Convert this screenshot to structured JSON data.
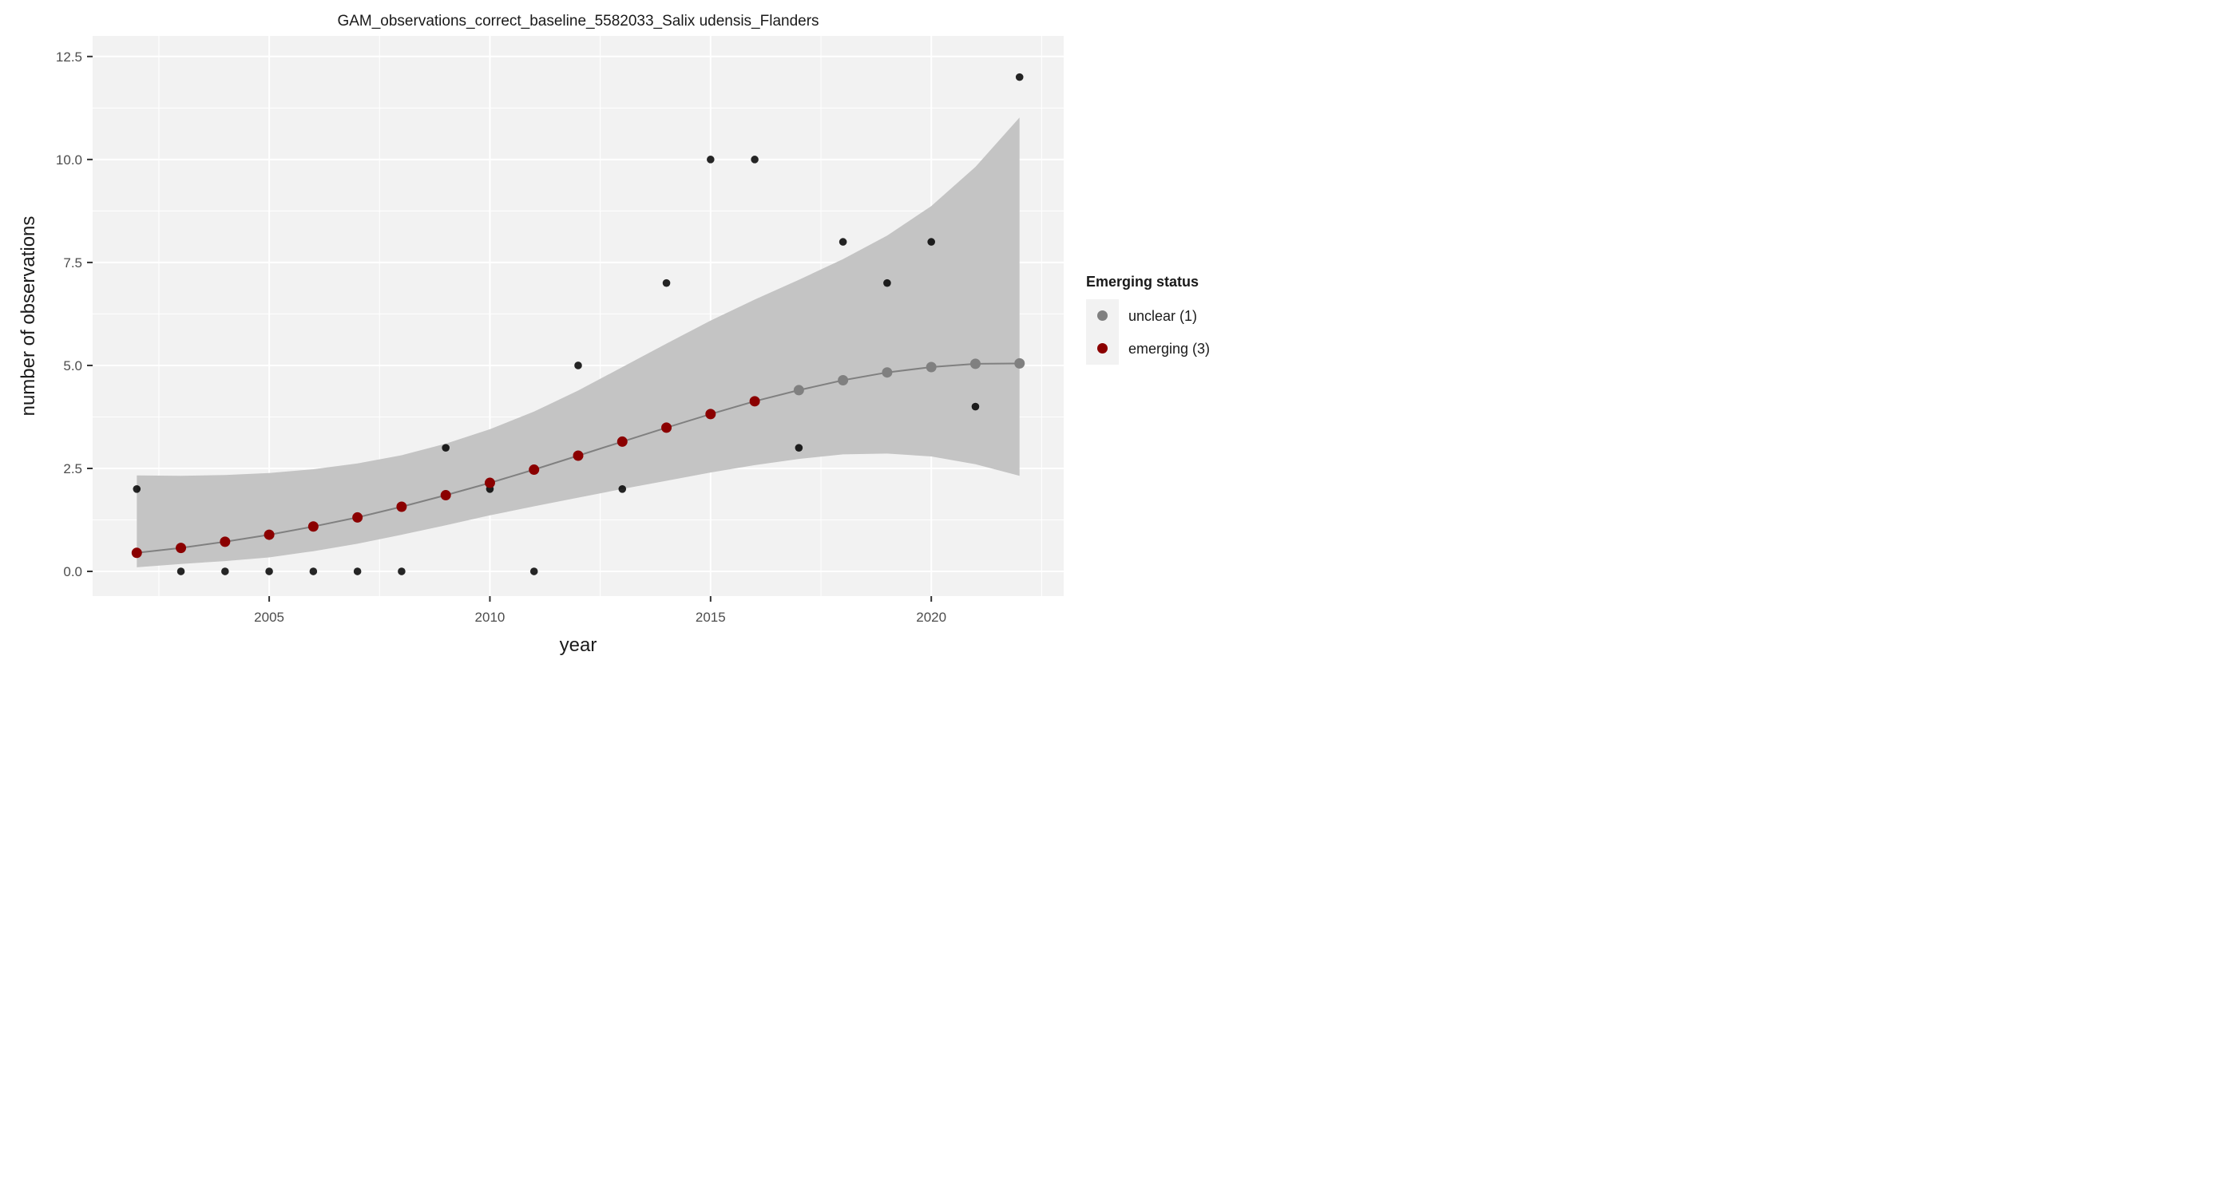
{
  "chart_data": {
    "type": "scatter",
    "title": "GAM_observations_correct_baseline_5582033_Salix udensis_Flanders",
    "xlabel": "year",
    "ylabel": "number of observations",
    "xlim": [
      2001,
      2023
    ],
    "ylim": [
      -0.6,
      13.0
    ],
    "x_ticks": [
      2005,
      2010,
      2015,
      2020
    ],
    "x_tick_labels": [
      "2005",
      "2010",
      "2015",
      "2020"
    ],
    "y_ticks": [
      0,
      2.5,
      5,
      7.5,
      10,
      12.5
    ],
    "y_tick_labels": [
      "0.0",
      "2.5",
      "5.0",
      "7.5",
      "10.0",
      "12.5"
    ],
    "grid": true,
    "legend": {
      "title": "Emerging status",
      "position": "right",
      "entries": [
        {
          "label": "unclear (1)",
          "color": "#808080"
        },
        {
          "label": "emerging (3)",
          "color": "#8b0000"
        }
      ]
    },
    "colors": {
      "panel": "#f2f2f2",
      "grid": "#ffffff",
      "ribbon": "#c4c4c4",
      "fit_line": "#808080",
      "observed": "#000000",
      "unclear": "#808080",
      "emerging": "#8b0000"
    },
    "observed": {
      "x": [
        2002,
        2003,
        2004,
        2005,
        2006,
        2007,
        2008,
        2009,
        2010,
        2011,
        2012,
        2013,
        2014,
        2015,
        2016,
        2017,
        2018,
        2019,
        2020,
        2021,
        2022
      ],
      "y": [
        2,
        0,
        0,
        0,
        0,
        0,
        0,
        3,
        2,
        0,
        5,
        2,
        7,
        10,
        10,
        3,
        8,
        7,
        8,
        4,
        12
      ]
    },
    "fit": {
      "x": [
        2002,
        2003,
        2004,
        2005,
        2006,
        2007,
        2008,
        2009,
        2010,
        2011,
        2012,
        2013,
        2014,
        2015,
        2016,
        2017,
        2018,
        2019,
        2020,
        2021,
        2022
      ],
      "y": [
        0.45,
        0.57,
        0.72,
        0.89,
        1.09,
        1.31,
        1.57,
        1.85,
        2.15,
        2.47,
        2.81,
        3.15,
        3.49,
        3.82,
        4.13,
        4.4,
        4.64,
        4.83,
        4.96,
        5.04,
        5.05
      ],
      "lower": [
        0.1,
        0.18,
        0.25,
        0.34,
        0.49,
        0.67,
        0.89,
        1.12,
        1.36,
        1.58,
        1.79,
        2.0,
        2.2,
        2.4,
        2.58,
        2.73,
        2.84,
        2.86,
        2.79,
        2.6,
        2.32
      ],
      "upper": [
        2.33,
        2.32,
        2.34,
        2.39,
        2.48,
        2.62,
        2.82,
        3.1,
        3.45,
        3.88,
        4.39,
        4.96,
        5.53,
        6.09,
        6.6,
        7.08,
        7.58,
        8.15,
        8.87,
        9.82,
        11.02
      ],
      "status": [
        "emerging",
        "emerging",
        "emerging",
        "emerging",
        "emerging",
        "emerging",
        "emerging",
        "emerging",
        "emerging",
        "emerging",
        "emerging",
        "emerging",
        "emerging",
        "emerging",
        "emerging",
        "unclear",
        "unclear",
        "unclear",
        "unclear",
        "unclear",
        "unclear"
      ]
    }
  }
}
